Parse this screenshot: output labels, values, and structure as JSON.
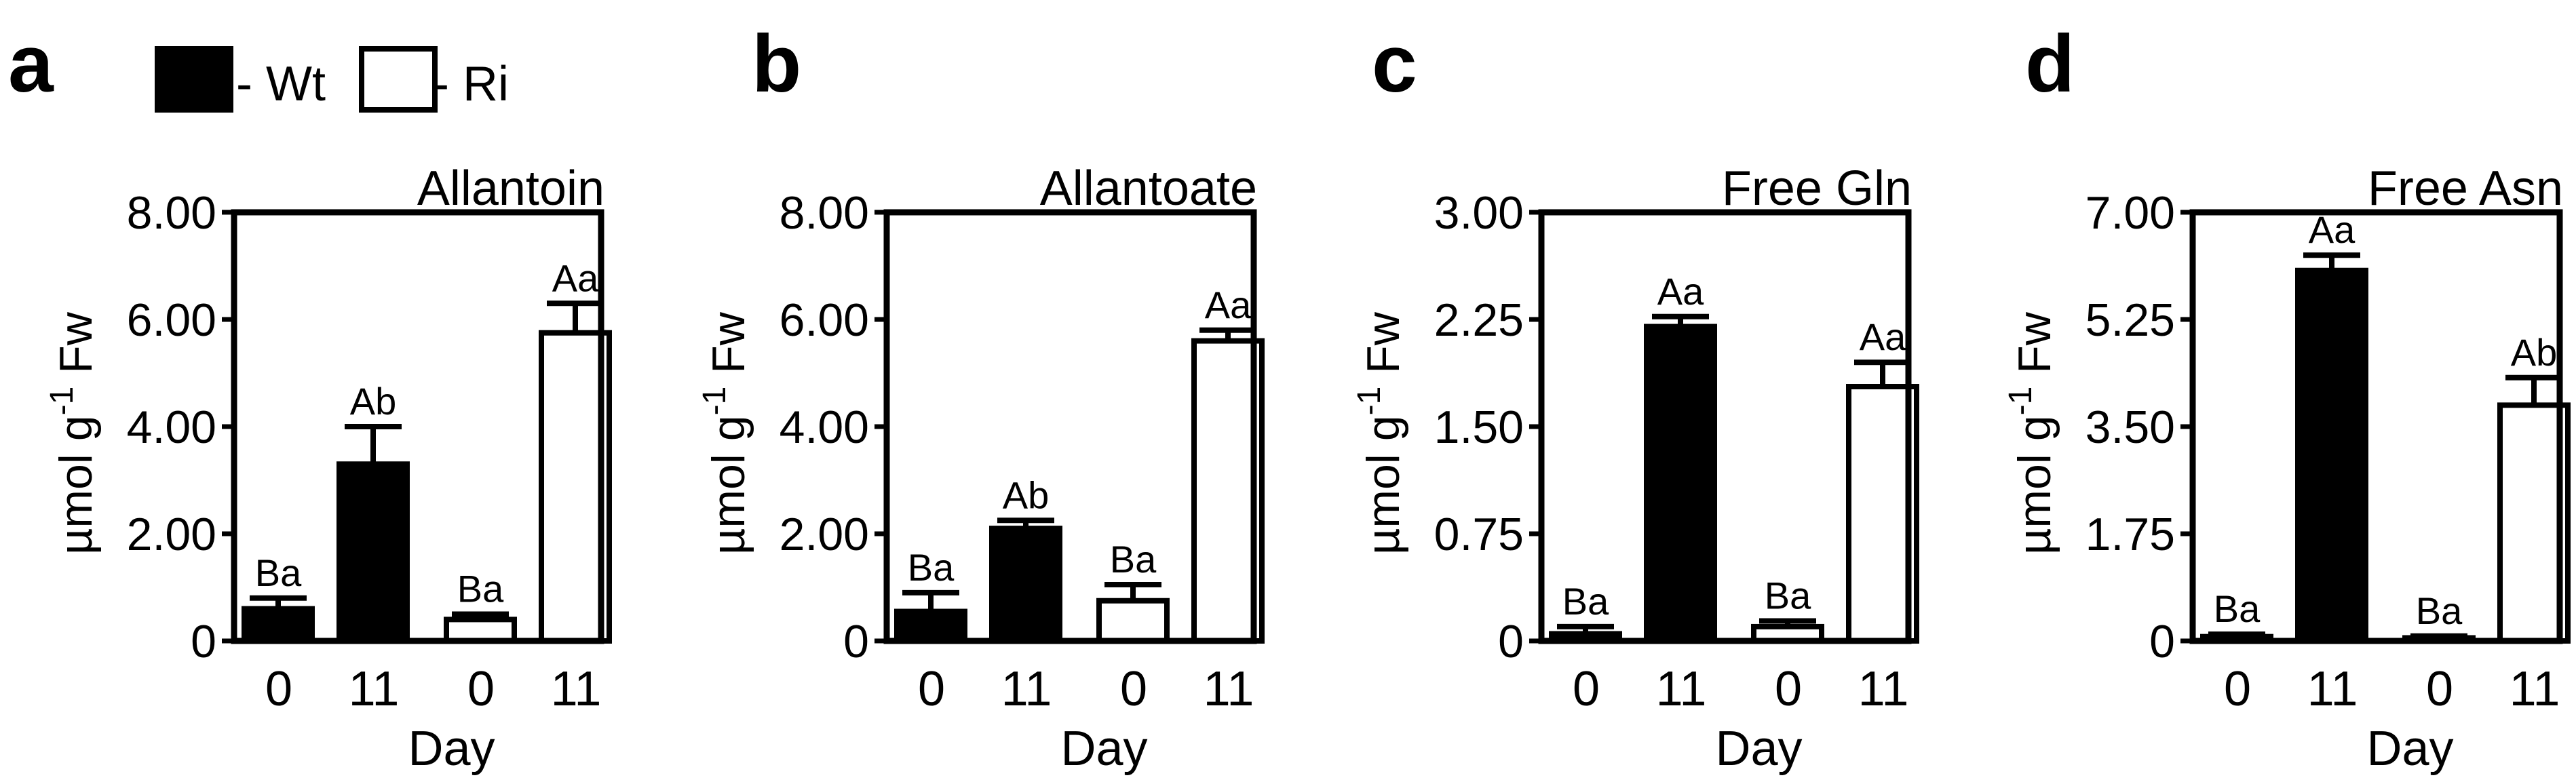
{
  "legend": {
    "items": [
      {
        "label": "- Wt",
        "fill": "#000000"
      },
      {
        "label": "- Ri",
        "fill": "#ffffff"
      }
    ]
  },
  "chart_data": [
    {
      "panel": "a",
      "type": "bar",
      "title": "Allantoin",
      "ylabel_main": "µmol g",
      "ylabel_sup": "-1",
      "ylabel_tail": " Fw",
      "xlabel": "Day",
      "categories": [
        "0",
        "11",
        "0",
        "11"
      ],
      "groups": [
        "Wt",
        "Wt",
        "Ri",
        "Ri"
      ],
      "values": [
        0.6,
        3.3,
        0.4,
        5.75
      ],
      "errors": [
        0.2,
        0.7,
        0.1,
        0.55
      ],
      "letters": [
        "Ba",
        "Ab",
        "Ba",
        "Aa"
      ],
      "ylim": [
        0,
        8
      ],
      "yticks": [
        0,
        2,
        4,
        6,
        8
      ],
      "yticklabels": [
        "0",
        "2.00",
        "4.00",
        "6.00",
        "8.00"
      ]
    },
    {
      "panel": "b",
      "type": "bar",
      "title": "Allantoate",
      "ylabel_main": "µmol g",
      "ylabel_sup": "-1",
      "ylabel_tail": " Fw",
      "xlabel": "Day",
      "categories": [
        "0",
        "11",
        "0",
        "11"
      ],
      "groups": [
        "Wt",
        "Wt",
        "Ri",
        "Ri"
      ],
      "values": [
        0.55,
        2.1,
        0.75,
        5.6
      ],
      "errors": [
        0.35,
        0.15,
        0.3,
        0.2
      ],
      "letters": [
        "Ba",
        "Ab",
        "Ba",
        "Aa"
      ],
      "ylim": [
        0,
        8
      ],
      "yticks": [
        0,
        2,
        4,
        6,
        8
      ],
      "yticklabels": [
        "0",
        "2.00",
        "4.00",
        "6.00",
        "8.00"
      ]
    },
    {
      "panel": "c",
      "type": "bar",
      "title": "Free Gln",
      "ylabel_main": "µmol g",
      "ylabel_sup": "-1",
      "ylabel_tail": " Fw",
      "xlabel": "Day",
      "categories": [
        "0",
        "11",
        "0",
        "11"
      ],
      "groups": [
        "Wt",
        "Wt",
        "Ri",
        "Ri"
      ],
      "values": [
        0.05,
        2.2,
        0.1,
        1.78
      ],
      "errors": [
        0.05,
        0.07,
        0.04,
        0.17
      ],
      "letters": [
        "Ba",
        "Aa",
        "Ba",
        "Aa"
      ],
      "ylim": [
        0,
        3
      ],
      "yticks": [
        0,
        0.75,
        1.5,
        2.25,
        3
      ],
      "yticklabels": [
        "0",
        "0.75",
        "1.50",
        "2.25",
        "3.00"
      ]
    },
    {
      "panel": "d",
      "type": "bar",
      "title": "Free Asn",
      "ylabel_main": "µmol g",
      "ylabel_sup": "-1",
      "ylabel_tail": " Fw",
      "xlabel": "Day",
      "categories": [
        "0",
        "11",
        "0",
        "11"
      ],
      "groups": [
        "Wt",
        "Wt",
        "Ri",
        "Ri"
      ],
      "values": [
        0.07,
        6.05,
        0.05,
        3.85
      ],
      "errors": [
        0.04,
        0.25,
        0.03,
        0.45
      ],
      "letters": [
        "Ba",
        "Aa",
        "Ba",
        "Ab"
      ],
      "ylim": [
        0,
        7
      ],
      "yticks": [
        0,
        1.75,
        3.5,
        5.25,
        7
      ],
      "yticklabels": [
        "0",
        "1.75",
        "3.50",
        "5.25",
        "7.00"
      ]
    }
  ]
}
